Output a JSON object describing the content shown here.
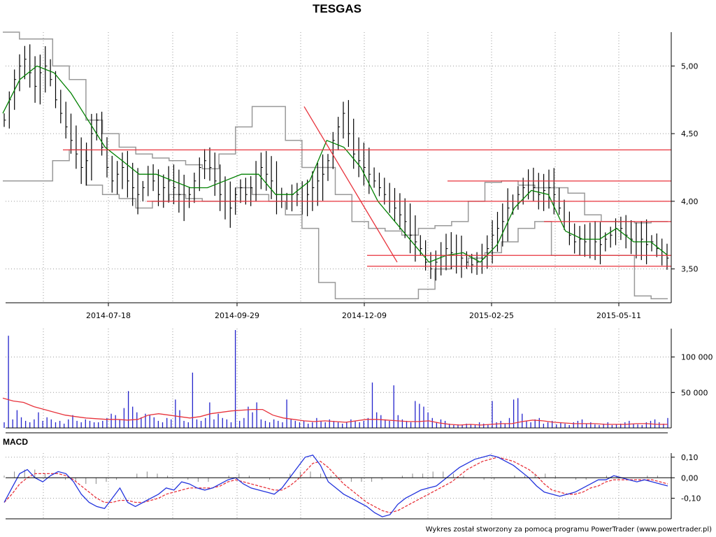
{
  "footer": "Wykres został stworzony za pomocą programu PowerTrader (www.powertrader.pl)",
  "chart_data": [
    {
      "type": "ohlc",
      "title": "TESGAS",
      "x_ticks": [
        "2014-07-18",
        "2014-09-29",
        "2014-12-09",
        "2015-02-25",
        "2015-05-11"
      ],
      "y_ticks": [
        "5,00",
        "4,50",
        "4,00",
        "3,50"
      ],
      "ylim": [
        3.25,
        5.25
      ],
      "grid": true,
      "colors": {
        "bars": "#000000",
        "moving_average": "#008000",
        "channel": "#999999",
        "lines": "#e8333c"
      },
      "close_path": [
        4.6,
        4.75,
        4.9,
        5.0,
        5.05,
        4.95,
        4.85,
        4.95,
        5.0,
        4.9,
        4.75,
        4.65,
        4.55,
        4.45,
        4.35,
        4.25,
        4.3,
        4.5,
        4.6,
        4.4,
        4.25,
        4.15,
        4.2,
        4.25,
        4.15,
        4.1,
        4.05,
        4.1,
        4.2,
        4.15,
        4.05,
        4.1,
        4.15,
        4.1,
        4.05,
        4.0,
        4.05,
        4.15,
        4.25,
        4.3,
        4.25,
        4.15,
        4.05,
        4.0,
        3.95,
        4.05,
        4.1,
        4.05,
        4.1,
        4.2,
        4.25,
        4.2,
        4.15,
        4.05,
        4.0,
        4.0,
        4.05,
        4.05,
        4.0,
        4.05,
        4.1,
        4.15,
        4.2,
        4.3,
        4.45,
        4.55,
        4.65,
        4.5,
        4.35,
        4.3,
        4.25,
        4.2,
        4.15,
        4.1,
        4.05,
        4.0,
        3.95,
        3.9,
        3.85,
        3.75,
        3.7,
        3.65,
        3.55,
        3.5,
        3.55,
        3.6,
        3.65,
        3.62,
        3.6,
        3.58,
        3.55,
        3.53,
        3.55,
        3.6,
        3.65,
        3.75,
        3.8,
        3.85,
        3.95,
        4.0,
        4.05,
        4.1,
        4.15,
        4.1,
        4.05,
        4.08,
        4.1,
        4.05,
        3.95,
        3.85,
        3.75,
        3.7,
        3.72,
        3.7,
        3.72,
        3.7,
        3.68,
        3.72,
        3.75,
        3.8,
        3.8,
        3.75,
        3.72,
        3.7,
        3.72,
        3.68,
        3.7,
        3.65,
        3.6,
        3.58
      ],
      "moving_average": [
        4.65,
        4.9,
        5.0,
        4.95,
        4.8,
        4.6,
        4.4,
        4.3,
        4.2,
        4.2,
        4.15,
        4.1,
        4.1,
        4.15,
        4.2,
        4.2,
        4.05,
        4.05,
        4.15,
        4.45,
        4.4,
        4.25,
        4.0,
        3.85,
        3.7,
        3.55,
        3.6,
        3.62,
        3.55,
        3.68,
        3.95,
        4.08,
        4.05,
        3.78,
        3.72,
        3.72,
        3.8,
        3.7,
        3.7,
        3.6
      ],
      "channel_upper": [
        5.25,
        5.2,
        5.2,
        5.0,
        4.9,
        4.6,
        4.5,
        4.4,
        4.35,
        4.32,
        4.3,
        4.27,
        4.24,
        4.35,
        4.55,
        4.7,
        4.7,
        4.45,
        4.25,
        4.25,
        4.05,
        3.85,
        3.8,
        3.78,
        3.75,
        3.8,
        3.82,
        3.85,
        4.0,
        4.14,
        4.15,
        4.12,
        4.1,
        4.1,
        4.06,
        3.9,
        3.85,
        3.85,
        3.84,
        3.85
      ],
      "channel_lower": [
        4.15,
        4.15,
        4.15,
        4.3,
        4.38,
        4.12,
        4.05,
        4.02,
        3.95,
        4.0,
        4.05,
        4.02,
        4.0,
        4.0,
        4.1,
        4.05,
        4.0,
        3.9,
        3.8,
        3.4,
        3.28,
        3.28,
        3.28,
        3.28,
        3.28,
        3.35,
        3.5,
        3.52,
        3.58,
        3.62,
        3.7,
        3.8,
        3.85,
        3.6,
        3.6,
        3.6,
        3.6,
        3.6,
        3.3,
        3.28
      ],
      "lines": [
        {
          "type": "horizontal",
          "value": 4.38
        },
        {
          "type": "horizontal",
          "value": 4.0
        },
        {
          "type": "horizontal",
          "value": 4.15
        },
        {
          "type": "horizontal",
          "value": 3.85
        },
        {
          "type": "horizontal",
          "value": 3.6
        },
        {
          "type": "horizontal",
          "value": 3.52
        },
        {
          "type": "trend",
          "from": 4.7,
          "to": 3.55
        }
      ]
    },
    {
      "type": "bar",
      "series_type": "volume",
      "y_ticks": [
        "100 000",
        "50 000"
      ],
      "ylim": [
        0,
        140000
      ],
      "colors": {
        "bars": "#2222cc",
        "average": "#e8333c"
      },
      "values": [
        8000,
        130000,
        12000,
        25000,
        15000,
        10000,
        8000,
        12000,
        22000,
        10000,
        15000,
        12000,
        8000,
        10000,
        6000,
        12000,
        18000,
        10000,
        8000,
        12000,
        10000,
        8000,
        8000,
        10000,
        14000,
        20000,
        18000,
        12000,
        28000,
        52000,
        30000,
        22000,
        15000,
        20000,
        18000,
        15000,
        10000,
        8000,
        14000,
        12000,
        40000,
        25000,
        10000,
        8000,
        78000,
        12000,
        10000,
        14000,
        36000,
        12000,
        20000,
        14000,
        12000,
        8000,
        138000,
        10000,
        14000,
        30000,
        22000,
        36000,
        12000,
        10000,
        8000,
        12000,
        10000,
        8000,
        40000,
        12000,
        10000,
        8000,
        10000,
        6000,
        8000,
        14000,
        10000,
        8000,
        12000,
        10000,
        8000,
        6000,
        8000,
        12000,
        10000,
        8000,
        10000,
        14000,
        64000,
        22000,
        18000,
        12000,
        10000,
        60000,
        18000,
        12000,
        10000,
        8000,
        38000,
        34000,
        30000,
        22000,
        14000,
        8000,
        12000,
        10000,
        6000,
        4000,
        5000,
        4000,
        6000,
        5000,
        4000,
        8000,
        6000,
        5000,
        38000,
        8000,
        10000,
        6000,
        14000,
        40000,
        42000,
        20000,
        10000,
        8000,
        12000,
        14000,
        6000,
        8000,
        10000,
        5000,
        8000,
        6000,
        4000,
        8000,
        10000,
        12000,
        6000,
        8000,
        5000,
        4000,
        6000,
        8000,
        4000,
        5000,
        6000,
        8000,
        10000,
        6000,
        5000,
        4000,
        8000,
        10000,
        12000,
        8000,
        6000,
        14000
      ],
      "average": [
        42000,
        38000,
        36000,
        30000,
        26000,
        22000,
        18000,
        16000,
        14000,
        13000,
        12000,
        12000,
        11000,
        12000,
        18000,
        20000,
        18000,
        16000,
        14000,
        16000,
        20000,
        22000,
        24000,
        25000,
        26000,
        26000,
        18000,
        14000,
        12000,
        10000,
        9000,
        10000,
        9000,
        8000,
        10000,
        12000,
        12000,
        11000,
        10000,
        9000,
        9000,
        10000,
        7000,
        5000,
        4000,
        5000,
        4000,
        5000,
        6000,
        6000,
        9000,
        11000,
        10000,
        8000,
        7000,
        6000,
        6000,
        6000,
        5000,
        5000,
        5000,
        6000,
        6000,
        5000,
        5000
      ]
    },
    {
      "type": "line",
      "title": "MACD",
      "y_ticks": [
        "0,10",
        "0,00",
        "-0,10"
      ],
      "ylim": [
        -0.2,
        0.12
      ],
      "colors": {
        "macd": "#2233dd",
        "signal": "#e8333c",
        "histogram": "#888888",
        "zero_line": "#000000"
      },
      "series": [
        {
          "values": [
            -0.12,
            -0.05,
            0.02,
            0.04,
            0.0,
            -0.02,
            0.01,
            0.03,
            0.02,
            -0.02,
            -0.08,
            -0.12,
            -0.14,
            -0.15,
            -0.1,
            -0.05,
            -0.12,
            -0.14,
            -0.12,
            -0.1,
            -0.08,
            -0.05,
            -0.06,
            -0.02,
            -0.03,
            -0.05,
            -0.06,
            -0.05,
            -0.03,
            -0.01,
            0.0,
            -0.03,
            -0.05,
            -0.06,
            -0.07,
            -0.08,
            -0.05,
            0.0,
            0.05,
            0.1,
            0.11,
            0.06,
            -0.02,
            -0.05,
            -0.08,
            -0.1,
            -0.12,
            -0.14,
            -0.17,
            -0.19,
            -0.18,
            -0.13,
            -0.1,
            -0.08,
            -0.06,
            -0.05,
            -0.04,
            -0.01,
            0.02,
            0.05,
            0.07,
            0.09,
            0.1,
            0.11,
            0.1,
            0.08,
            0.06,
            0.03,
            0.0,
            -0.04,
            -0.07,
            -0.08,
            -0.09,
            -0.08,
            -0.07,
            -0.05,
            -0.03,
            -0.01,
            -0.01,
            0.01,
            0.0,
            -0.01,
            -0.02,
            -0.01,
            -0.02,
            -0.03,
            -0.04
          ]
        },
        {
          "values": [
            -0.12,
            -0.08,
            -0.03,
            0.0,
            0.02,
            0.02,
            0.02,
            0.02,
            0.01,
            -0.01,
            -0.04,
            -0.07,
            -0.1,
            -0.12,
            -0.12,
            -0.11,
            -0.11,
            -0.12,
            -0.12,
            -0.11,
            -0.1,
            -0.08,
            -0.07,
            -0.06,
            -0.05,
            -0.05,
            -0.05,
            -0.05,
            -0.04,
            -0.02,
            -0.01,
            -0.02,
            -0.03,
            -0.04,
            -0.05,
            -0.06,
            -0.06,
            -0.04,
            -0.01,
            0.03,
            0.07,
            0.08,
            0.05,
            0.01,
            -0.03,
            -0.06,
            -0.09,
            -0.12,
            -0.14,
            -0.16,
            -0.17,
            -0.16,
            -0.14,
            -0.12,
            -0.1,
            -0.08,
            -0.06,
            -0.04,
            -0.02,
            0.01,
            0.04,
            0.06,
            0.08,
            0.09,
            0.1,
            0.09,
            0.08,
            0.06,
            0.04,
            0.01,
            -0.03,
            -0.06,
            -0.07,
            -0.08,
            -0.08,
            -0.07,
            -0.05,
            -0.04,
            -0.02,
            -0.01,
            -0.01,
            -0.01,
            -0.01,
            -0.01,
            -0.01,
            -0.02,
            -0.03
          ]
        }
      ],
      "histogram": [
        0.01,
        0.03,
        0.04,
        0.04,
        0.02,
        0.0,
        -0.01,
        -0.02,
        -0.03,
        -0.03,
        -0.02,
        -0.01,
        0.0,
        0.02,
        0.03,
        0.02,
        0.01,
        0.0,
        -0.01,
        -0.02,
        -0.02,
        0.0,
        0.01,
        0.02,
        0.01,
        0.0,
        -0.01,
        0.0,
        0.02,
        0.03,
        0.03,
        0.02,
        0.01,
        -0.01,
        -0.02,
        -0.02,
        -0.02,
        -0.01,
        0.0,
        0.01,
        0.02,
        0.02,
        0.03,
        0.03,
        0.02,
        0.01,
        0.0,
        -0.01,
        -0.01,
        0.0,
        0.01,
        0.01,
        0.02,
        0.02,
        0.01,
        0.0,
        -0.01,
        -0.01,
        0.0,
        0.01,
        0.01,
        0.0,
        0.0,
        0.01,
        0.01,
        0.0
      ]
    }
  ]
}
